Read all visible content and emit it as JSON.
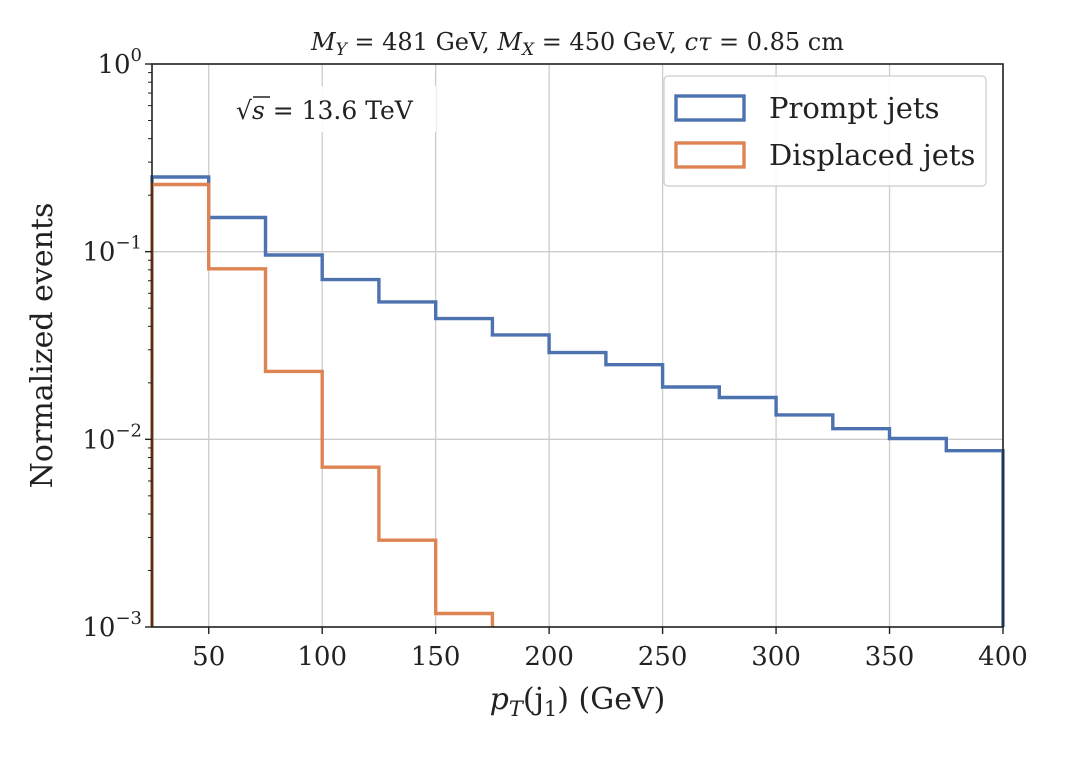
{
  "chart_data": {
    "type": "step-histogram",
    "title": "M_Y = 481 GeV, M_X = 450 GeV, cτ = 0.85 cm",
    "title_parts": {
      "my_sym": "M",
      "my_sub": "Y",
      "my_val": " = 481 GeV, ",
      "mx_sym": "M",
      "mx_sub": "X",
      "mx_val": " = 450 GeV, ",
      "ct_sym": "cτ",
      "ct_val": " = 0.85 cm"
    },
    "annotation": {
      "sqrt": "√",
      "s": "s",
      "rest": " = 13.6 TeV"
    },
    "xlabel": {
      "main": "p",
      "sub": "T",
      "rest1": "(j",
      "sub2": "1",
      "rest2": ") (GeV)"
    },
    "ylabel": "Normalized events",
    "xlim": [
      25,
      400
    ],
    "ylim": [
      0.001,
      1
    ],
    "yscale": "log",
    "grid": true,
    "xticks": [
      50,
      100,
      150,
      200,
      250,
      300,
      350,
      400
    ],
    "xtick_labels": [
      "50",
      "100",
      "150",
      "200",
      "250",
      "300",
      "350",
      "400"
    ],
    "yticks": [
      {
        "value": 1,
        "base": "10",
        "exp": "0"
      },
      {
        "value": 0.1,
        "base": "10",
        "exp": "−1"
      },
      {
        "value": 0.01,
        "base": "10",
        "exp": "−2"
      },
      {
        "value": 0.001,
        "base": "10",
        "exp": "−3"
      }
    ],
    "bin_edges": [
      25,
      50,
      75,
      100,
      125,
      150,
      175,
      200,
      225,
      250,
      275,
      300,
      325,
      350,
      375,
      400
    ],
    "series": [
      {
        "name": "Prompt jets",
        "color": "#4c72b0",
        "values": [
          0.25,
          0.152,
          0.096,
          0.071,
          0.054,
          0.044,
          0.036,
          0.029,
          0.025,
          0.019,
          0.0167,
          0.0135,
          0.0114,
          0.0101,
          0.0087
        ]
      },
      {
        "name": "Displaced jets",
        "color": "#dd8452",
        "values": [
          0.228,
          0.081,
          0.023,
          0.0071,
          0.0029,
          0.00118
        ]
      }
    ],
    "legend_position": "top-right"
  }
}
